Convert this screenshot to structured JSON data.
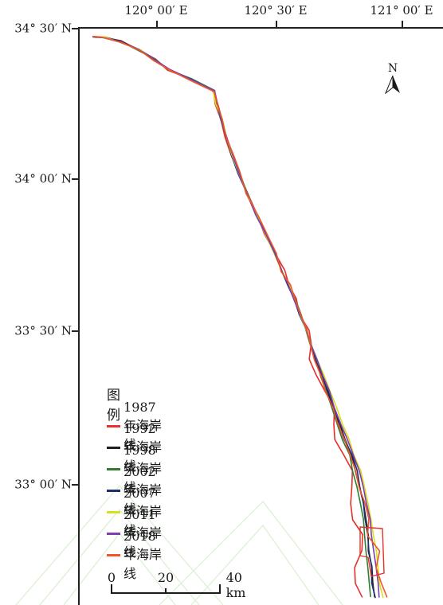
{
  "longitude_labels": [
    "120° 00′ E",
    "120° 30′ E",
    "121° 00′ E"
  ],
  "latitude_labels": [
    "34° 30′ N",
    "34° 00′ N",
    "33° 30′ N",
    "33° 00′ N"
  ],
  "north_arrow": {
    "label": "N"
  },
  "legend": {
    "title": "图例",
    "items": [
      {
        "label": "1987年海岸线",
        "color": "#e8302a"
      },
      {
        "label": "1992年海岸线",
        "color": "#1f1f1f"
      },
      {
        "label": "1998年海岸线",
        "color": "#2e7d32"
      },
      {
        "label": "2002年海岸线",
        "color": "#1f2f6e"
      },
      {
        "label": "2007年海岸线",
        "color": "#d6e01c"
      },
      {
        "label": "2011年海岸线",
        "color": "#7b3fb0"
      },
      {
        "label": "2018年海岸线",
        "color": "#f0552a"
      }
    ]
  },
  "scale_bar": {
    "labels": [
      "0",
      "20",
      "40 km"
    ]
  }
}
